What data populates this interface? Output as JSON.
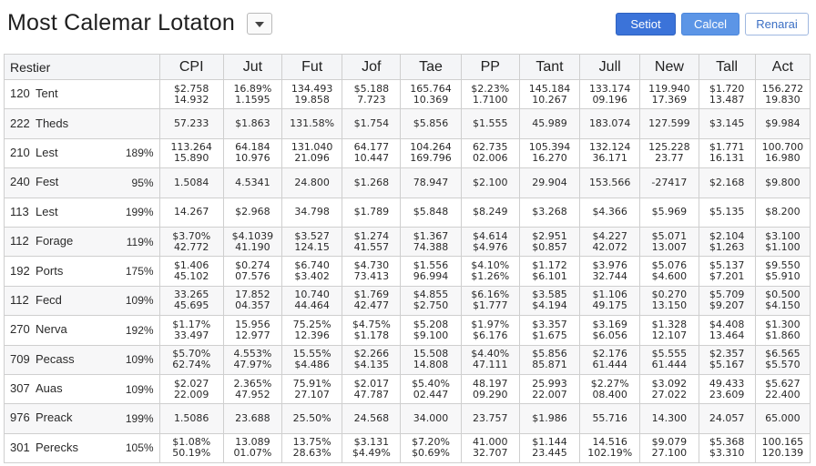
{
  "title": "Most Calemar Lotaton",
  "buttons": {
    "primary": "Setiot",
    "secondary": "Calcel",
    "tertiary": "Renarai"
  },
  "columns": [
    "Restier",
    "CPI",
    "Jut",
    "Fut",
    "Jof",
    "Tae",
    "PP",
    "Tant",
    "Jull",
    "New",
    "Tall",
    "Act"
  ],
  "rows": [
    {
      "id": "120",
      "name": "Tent",
      "pct": "",
      "cells": [
        [
          "$2.758",
          "14.932"
        ],
        [
          "16.89%",
          "1.1595"
        ],
        [
          "134.493",
          "19.858"
        ],
        [
          "$5.188",
          "7.723"
        ],
        [
          "165.764",
          "10.369"
        ],
        [
          "$2.23%",
          "1.7100"
        ],
        [
          "145.184",
          "10.267"
        ],
        [
          "133.174",
          "09.196"
        ],
        [
          "119.940",
          "17.369"
        ],
        [
          "$1.720",
          "13.487"
        ],
        [
          "156.272",
          "19.830"
        ]
      ]
    },
    {
      "id": "222",
      "name": "Theds",
      "pct": "",
      "cells": [
        [
          "57.233"
        ],
        [
          "$1.863"
        ],
        [
          "131.58%"
        ],
        [
          "$1.754"
        ],
        [
          "$5.856"
        ],
        [
          "$1.555"
        ],
        [
          "45.989"
        ],
        [
          "183.074"
        ],
        [
          "127.599"
        ],
        [
          "$3.145"
        ],
        [
          "$9.984"
        ]
      ]
    },
    {
      "id": "210",
      "name": "Lest",
      "pct": "189%",
      "cells": [
        [
          "113.264",
          "15.890"
        ],
        [
          "64.184",
          "10.976"
        ],
        [
          "131.040",
          "21.096"
        ],
        [
          "64.177",
          "10.447"
        ],
        [
          "104.264",
          "169.796"
        ],
        [
          "62.735",
          "02.006"
        ],
        [
          "105.394",
          "16.270"
        ],
        [
          "132.124",
          "36.171"
        ],
        [
          "125.228",
          "23.77"
        ],
        [
          "$1.771",
          "16.131"
        ],
        [
          "100.700",
          "16.980"
        ]
      ]
    },
    {
      "id": "240",
      "name": "Fest",
      "pct": "95%",
      "cells": [
        [
          "1.5084"
        ],
        [
          "4.5341"
        ],
        [
          "24.800"
        ],
        [
          "$1.268"
        ],
        [
          "78.947"
        ],
        [
          "$2.100"
        ],
        [
          "29.904"
        ],
        [
          "153.566"
        ],
        [
          "-27417"
        ],
        [
          "$2.168"
        ],
        [
          "$9.800"
        ]
      ]
    },
    {
      "id": "113",
      "name": "Lest",
      "pct": "199%",
      "cells": [
        [
          "14.267"
        ],
        [
          "$2.968"
        ],
        [
          "34.798"
        ],
        [
          "$1.789"
        ],
        [
          "$5.848"
        ],
        [
          "$8.249"
        ],
        [
          "$3.268"
        ],
        [
          "$4.366"
        ],
        [
          "$5.969"
        ],
        [
          "$5.135"
        ],
        [
          "$8.200"
        ]
      ]
    },
    {
      "id": "112",
      "name": "Forage",
      "pct": "119%",
      "cells": [
        [
          "$3.70%",
          "42.772"
        ],
        [
          "$4.1039",
          "41.190"
        ],
        [
          "$3.527",
          "124.15"
        ],
        [
          "$1.274",
          "41.557"
        ],
        [
          "$1.367",
          "74.388"
        ],
        [
          "$4.614",
          "$4.976"
        ],
        [
          "$2.951",
          "$0.857"
        ],
        [
          "$4.227",
          "42.072"
        ],
        [
          "$5.071",
          "13.007"
        ],
        [
          "$2.104",
          "$1.263"
        ],
        [
          "$3.100",
          "$1.100"
        ]
      ]
    },
    {
      "id": "192",
      "name": "Ports",
      "pct": "175%",
      "cells": [
        [
          "$1.406",
          "45.102"
        ],
        [
          "$0.274",
          "07.576"
        ],
        [
          "$6.740",
          "$3.402"
        ],
        [
          "$4.730",
          "73.413"
        ],
        [
          "$1.556",
          "96.994"
        ],
        [
          "$4.10%",
          "$1.26%"
        ],
        [
          "$1.172",
          "$6.101"
        ],
        [
          "$3.976",
          "32.744"
        ],
        [
          "$5.076",
          "$4.600"
        ],
        [
          "$5.137",
          "$7.201"
        ],
        [
          "$9.550",
          "$5.910"
        ]
      ]
    },
    {
      "id": "112",
      "name": "Fecd",
      "pct": "109%",
      "cells": [
        [
          "33.265",
          "45.695"
        ],
        [
          "17.852",
          "04.357"
        ],
        [
          "10.740",
          "44.464"
        ],
        [
          "$1.769",
          "42.477"
        ],
        [
          "$4.855",
          "$2.750"
        ],
        [
          "$6.16%",
          "$1.777"
        ],
        [
          "$3.585",
          "$4.194"
        ],
        [
          "$1.106",
          "49.175"
        ],
        [
          "$0.270",
          "13.150"
        ],
        [
          "$5.709",
          "$9.207"
        ],
        [
          "$0.500",
          "$4.150"
        ]
      ]
    },
    {
      "id": "270",
      "name": "Nerva",
      "pct": "192%",
      "cells": [
        [
          "$1.17%",
          "33.497"
        ],
        [
          "15.956",
          "12.977"
        ],
        [
          "75.25%",
          "12.396"
        ],
        [
          "$4.75%",
          "$1.178"
        ],
        [
          "$5.208",
          "$9.100"
        ],
        [
          "$1.97%",
          "$6.176"
        ],
        [
          "$3.357",
          "$1.675"
        ],
        [
          "$3.169",
          "$6.056"
        ],
        [
          "$1.328",
          "12.107"
        ],
        [
          "$4.408",
          "13.464"
        ],
        [
          "$1.300",
          "$1.860"
        ]
      ]
    },
    {
      "id": "709",
      "name": "Pecass",
      "pct": "109%",
      "cells": [
        [
          "$5.70%",
          "62.74%"
        ],
        [
          "4.553%",
          "47.97%"
        ],
        [
          "15.55%",
          "$4.486"
        ],
        [
          "$2.266",
          "$4.135"
        ],
        [
          "15.508",
          "14.808"
        ],
        [
          "$4.40%",
          "47.111"
        ],
        [
          "$5.856",
          "85.871"
        ],
        [
          "$2.176",
          "61.444"
        ],
        [
          "$5.555",
          "61.444"
        ],
        [
          "$2.357",
          "$5.167"
        ],
        [
          "$6.565",
          "$5.570"
        ]
      ]
    },
    {
      "id": "307",
      "name": "Auas",
      "pct": "109%",
      "cells": [
        [
          "$2.027",
          "22.009"
        ],
        [
          "2.365%",
          "47.952"
        ],
        [
          "75.91%",
          "27.107"
        ],
        [
          "$2.017",
          "47.787"
        ],
        [
          "$5.40%",
          "02.447"
        ],
        [
          "48.197",
          "09.290"
        ],
        [
          "25.993",
          "22.007"
        ],
        [
          "$2.27%",
          "08.400"
        ],
        [
          "$3.092",
          "27.022"
        ],
        [
          "49.433",
          "23.609"
        ],
        [
          "$5.627",
          "22.400"
        ]
      ]
    },
    {
      "id": "976",
      "name": "Preack",
      "pct": "199%",
      "cells": [
        [
          "1.5086"
        ],
        [
          "23.688"
        ],
        [
          "25.50%"
        ],
        [
          "24.568"
        ],
        [
          "34.000"
        ],
        [
          "23.757"
        ],
        [
          "$1.986"
        ],
        [
          "55.716"
        ],
        [
          "14.300"
        ],
        [
          "24.057"
        ],
        [
          "65.000"
        ]
      ]
    },
    {
      "id": "301",
      "name": "Perecks",
      "pct": "105%",
      "cells": [
        [
          "$1.08%",
          "50.19%"
        ],
        [
          "13.089",
          "01.07%"
        ],
        [
          "13.75%",
          "28.63%"
        ],
        [
          "$3.131",
          "$4.49%"
        ],
        [
          "$7.20%",
          "$0.69%"
        ],
        [
          "41.000",
          "32.707"
        ],
        [
          "$1.144",
          "23.445"
        ],
        [
          "14.516",
          "102.19%"
        ],
        [
          "$9.079",
          "27.100"
        ],
        [
          "$5.368",
          "$3.310"
        ],
        [
          "100.165",
          "120.139"
        ]
      ]
    }
  ]
}
